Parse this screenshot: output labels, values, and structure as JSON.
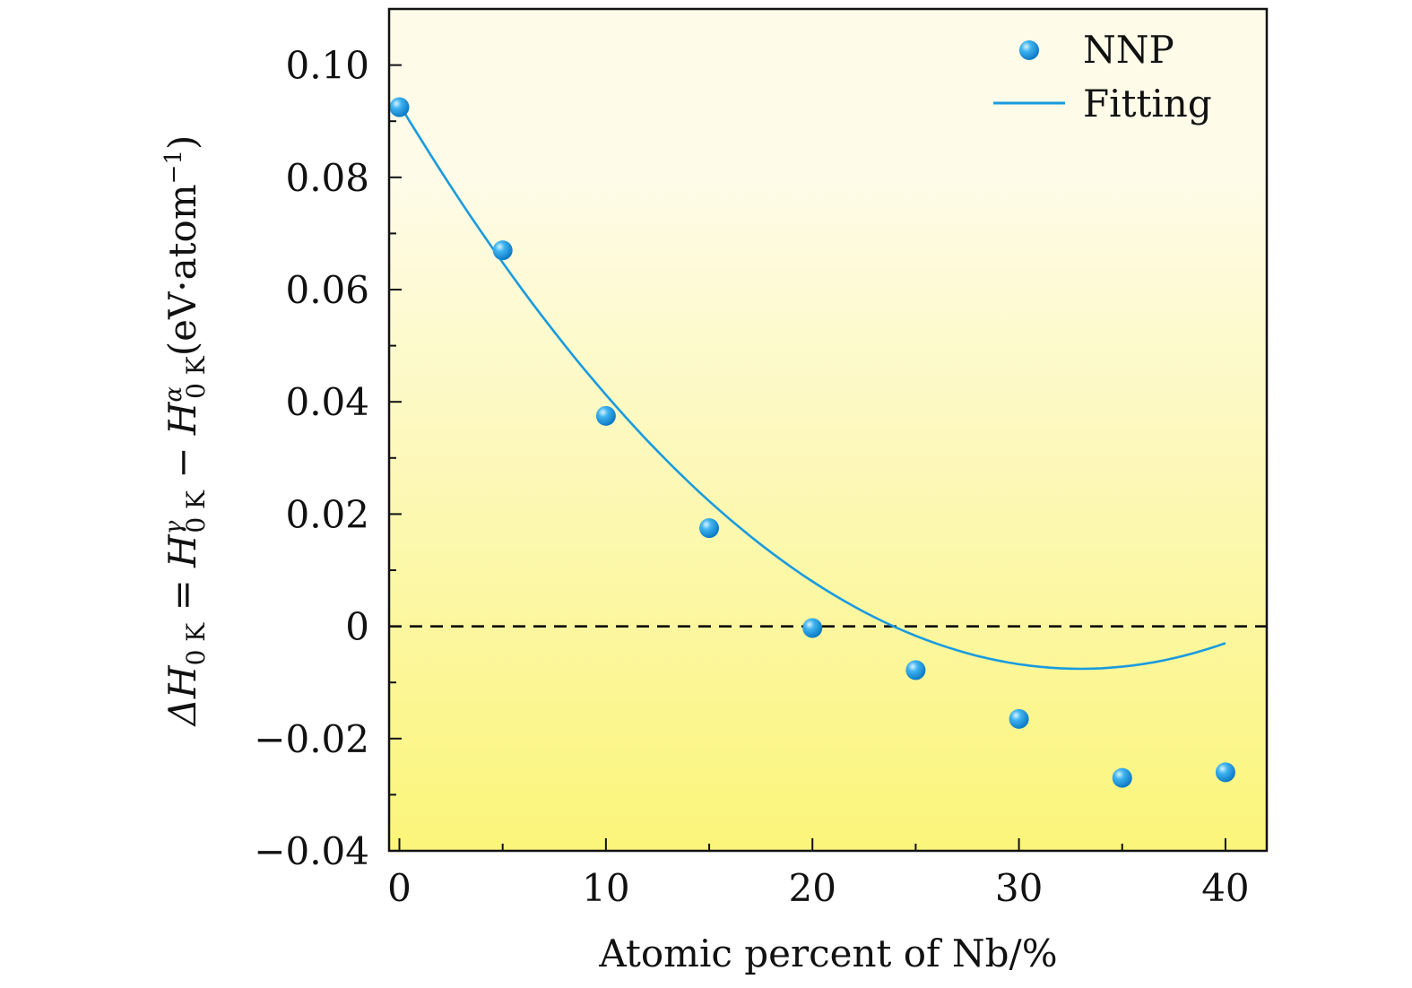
{
  "chart_data": {
    "type": "scatter",
    "xlabel": "Atomic percent of Nb/%",
    "ylabel": "ΔH",
    "ylabel_parts": {
      "sub_0K": "0 K",
      "eq": " = ",
      "H": "H",
      "gamma": "γ",
      "minus": " − ",
      "alpha": "α",
      "unit": "(eV·atom",
      "unit_exp": "−1",
      "close": ")"
    },
    "xlim": [
      -0.5,
      42
    ],
    "ylim": [
      -0.04,
      0.11
    ],
    "x_ticks": [
      0,
      10,
      20,
      30,
      40
    ],
    "x_tick_labels": [
      "0",
      "10",
      "20",
      "30",
      "40"
    ],
    "y_ticks": [
      -0.04,
      -0.02,
      0,
      0.02,
      0.04,
      0.06,
      0.08,
      0.1
    ],
    "y_tick_labels": [
      "−0.04",
      "−0.02",
      "0",
      "0.02",
      "0.04",
      "0.06",
      "0.08",
      "0.10"
    ],
    "series": [
      {
        "name": "NNP",
        "kind": "points",
        "color": "#1a9be0",
        "x": [
          0,
          5,
          10,
          15,
          20,
          25,
          30,
          35,
          40
        ],
        "y": [
          0.0925,
          0.067,
          0.0375,
          0.0175,
          -0.0003,
          -0.0078,
          -0.0165,
          -0.027,
          -0.026
        ]
      },
      {
        "name": "Fitting",
        "kind": "line",
        "color": "#1a9be0",
        "coefficients": [
          0.093,
          -0.0061,
          9.25e-05
        ]
      }
    ],
    "reference_line": {
      "y": 0,
      "style": "dashed",
      "color": "#000000"
    },
    "background_gradient": {
      "top_color": "#fefbe8",
      "bottom_color": "#fbf57a",
      "from_y": 0.08,
      "to_y": -0.04
    },
    "legend": {
      "placement": "top-right"
    }
  }
}
